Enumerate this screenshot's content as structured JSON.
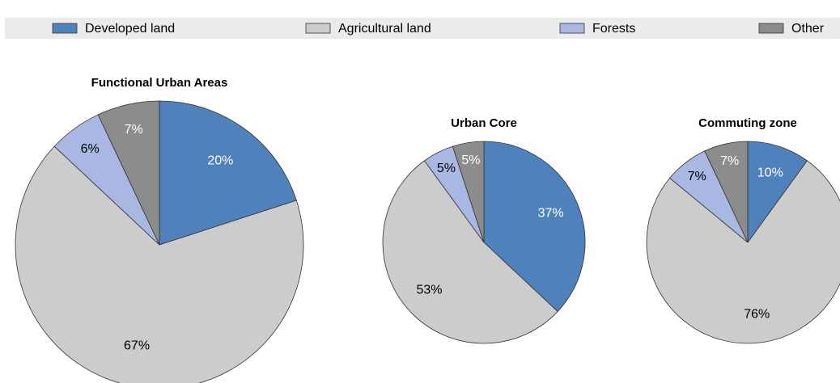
{
  "chart_data": [
    {
      "type": "pie",
      "title": "Functional Urban Areas",
      "categories": [
        "Developed land",
        "Agricultural land",
        "Forests",
        "Other"
      ],
      "values": [
        20,
        67,
        6,
        7
      ],
      "value_labels": [
        "20%",
        "67%",
        "6%",
        "7%"
      ],
      "colors": [
        "#4f81bd",
        "#cccccc",
        "#a9b7e3",
        "#8c8c8c"
      ]
    },
    {
      "type": "pie",
      "title": "Urban Core",
      "categories": [
        "Developed land",
        "Agricultural land",
        "Forests",
        "Other"
      ],
      "values": [
        37,
        53,
        5,
        5
      ],
      "value_labels": [
        "37%",
        "53%",
        "5%",
        "5%"
      ],
      "colors": [
        "#4f81bd",
        "#cccccc",
        "#a9b7e3",
        "#8c8c8c"
      ]
    },
    {
      "type": "pie",
      "title": "Commuting zone",
      "categories": [
        "Developed land",
        "Agricultural land",
        "Forests",
        "Other"
      ],
      "values": [
        10,
        76,
        7,
        7
      ],
      "value_labels": [
        "10%",
        "76%",
        "7%",
        "7%"
      ],
      "colors": [
        "#4f81bd",
        "#cccccc",
        "#a9b7e3",
        "#8c8c8c"
      ]
    }
  ]
}
